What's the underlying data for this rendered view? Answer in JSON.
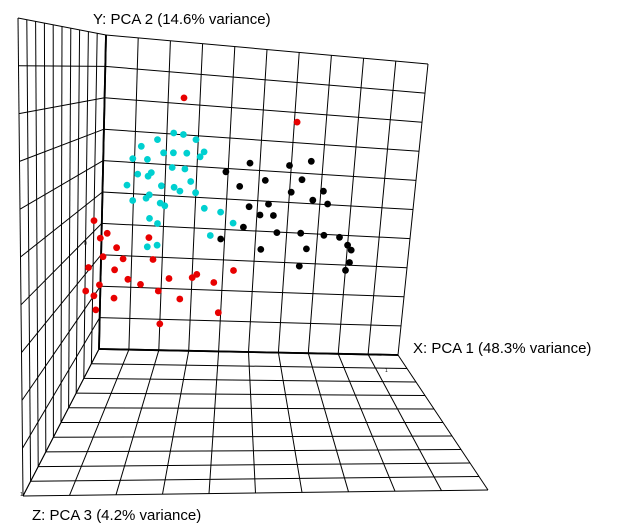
{
  "chart_data": {
    "type": "scatter",
    "projection": "3d",
    "axes": {
      "x": {
        "label": "X:  PCA 1 (48.3% variance)",
        "range": [
          -1,
          1
        ]
      },
      "y": {
        "label": "Y:  PCA 2 (14.6% variance)",
        "range": [
          -1,
          1
        ]
      },
      "z": {
        "label": "Z:  PCA 3 (4.2% variance)",
        "range": [
          -1,
          1
        ]
      }
    },
    "corner_marks": {
      "origin": "0",
      "x_end": "1",
      "z_end": "1"
    },
    "grid": true,
    "legend": null,
    "series": [
      {
        "color": "#00d0d0",
        "points": [
          [
            -0.55,
            0.82,
            0.2
          ],
          [
            -0.5,
            0.89,
            0.18
          ],
          [
            -0.44,
            0.84,
            0.25
          ],
          [
            -0.4,
            0.92,
            0.15
          ],
          [
            -0.34,
            0.87,
            0.22
          ],
          [
            -0.3,
            0.95,
            0.12
          ],
          [
            -0.26,
            0.9,
            0.28
          ],
          [
            -0.22,
            0.97,
            0.18
          ],
          [
            -0.18,
            0.88,
            0.24
          ],
          [
            -0.14,
            0.93,
            0.16
          ],
          [
            -0.1,
            0.84,
            0.2
          ],
          [
            -0.06,
            0.9,
            0.26
          ],
          [
            -0.5,
            0.75,
            0.26
          ],
          [
            -0.45,
            0.7,
            0.18
          ],
          [
            -0.4,
            0.78,
            0.3
          ],
          [
            -0.35,
            0.66,
            0.22
          ],
          [
            -0.3,
            0.74,
            0.14
          ],
          [
            -0.25,
            0.68,
            0.28
          ],
          [
            -0.2,
            0.76,
            0.2
          ],
          [
            -0.15,
            0.7,
            0.24
          ],
          [
            -0.58,
            0.66,
            0.22
          ],
          [
            -0.52,
            0.6,
            0.3
          ],
          [
            -0.46,
            0.56,
            0.18
          ],
          [
            -0.42,
            0.62,
            0.26
          ],
          [
            -0.36,
            0.54,
            0.2
          ],
          [
            -0.3,
            0.58,
            0.32
          ],
          [
            -0.24,
            0.6,
            0.16
          ],
          [
            -0.12,
            0.62,
            0.22
          ],
          [
            -0.42,
            0.46,
            0.24
          ],
          [
            -0.38,
            0.4,
            0.18
          ],
          [
            -0.36,
            0.3,
            0.26
          ],
          [
            -0.44,
            0.26,
            0.2
          ],
          [
            -0.04,
            0.56,
            0.3
          ],
          [
            0.05,
            0.5,
            0.22
          ],
          [
            0.15,
            0.46,
            0.28
          ],
          [
            -0.02,
            0.34,
            0.2
          ]
        ]
      },
      {
        "color": "#000000",
        "points": [
          [
            0.05,
            0.7,
            0.1
          ],
          [
            0.2,
            0.74,
            0.06
          ],
          [
            0.32,
            0.66,
            0.12
          ],
          [
            0.46,
            0.72,
            0.04
          ],
          [
            0.56,
            0.66,
            0.1
          ],
          [
            0.6,
            0.74,
            0.02
          ],
          [
            0.7,
            0.58,
            0.08
          ],
          [
            0.72,
            0.48,
            0.04
          ],
          [
            0.64,
            0.54,
            0.12
          ],
          [
            0.48,
            0.56,
            0.06
          ],
          [
            0.34,
            0.5,
            0.1
          ],
          [
            0.22,
            0.5,
            0.14
          ],
          [
            0.14,
            0.6,
            0.08
          ],
          [
            0.36,
            0.4,
            0.04
          ],
          [
            0.28,
            0.42,
            0.08
          ],
          [
            0.18,
            0.36,
            0.12
          ],
          [
            0.04,
            0.3,
            0.16
          ],
          [
            0.4,
            0.32,
            0.1
          ],
          [
            0.55,
            0.3,
            0.06
          ],
          [
            0.7,
            0.28,
            0.04
          ],
          [
            0.8,
            0.26,
            0.02
          ],
          [
            0.86,
            0.22,
            0.04
          ],
          [
            0.88,
            0.18,
            0.02
          ],
          [
            0.88,
            0.12,
            0.06
          ],
          [
            0.85,
            0.06,
            0.04
          ],
          [
            0.3,
            0.22,
            0.12
          ],
          [
            0.55,
            0.1,
            0.08
          ],
          [
            0.6,
            0.22,
            0.1
          ]
        ]
      },
      {
        "color": "#e80000",
        "points": [
          [
            -0.8,
            0.42,
            0.2
          ],
          [
            -0.7,
            0.36,
            0.24
          ],
          [
            -0.76,
            0.3,
            0.18
          ],
          [
            -0.64,
            0.26,
            0.22
          ],
          [
            -0.72,
            0.22,
            0.26
          ],
          [
            -0.6,
            0.18,
            0.2
          ],
          [
            -0.82,
            0.14,
            0.24
          ],
          [
            -0.66,
            0.1,
            0.18
          ],
          [
            -0.56,
            0.06,
            0.22
          ],
          [
            -0.74,
            0.04,
            0.26
          ],
          [
            -0.48,
            0.02,
            0.2
          ],
          [
            -0.78,
            -0.04,
            0.24
          ],
          [
            -0.66,
            -0.08,
            0.18
          ],
          [
            -0.76,
            -0.12,
            0.26
          ],
          [
            -0.84,
            -0.02,
            0.22
          ],
          [
            -0.4,
            0.18,
            0.2
          ],
          [
            -0.28,
            0.08,
            0.24
          ],
          [
            -0.14,
            0.06,
            0.18
          ],
          [
            -0.1,
            0.1,
            0.22
          ],
          [
            -0.2,
            -0.04,
            0.26
          ],
          [
            -0.36,
            -0.02,
            0.2
          ],
          [
            -0.44,
            0.3,
            0.16
          ],
          [
            0.02,
            0.06,
            0.24
          ],
          [
            0.14,
            0.12,
            0.2
          ],
          [
            0.04,
            -0.16,
            0.18
          ],
          [
            -0.34,
            -0.22,
            0.22
          ],
          [
            0.3,
            0.6,
            -0.8
          ],
          [
            -0.46,
            0.74,
            -0.8
          ]
        ]
      }
    ]
  }
}
